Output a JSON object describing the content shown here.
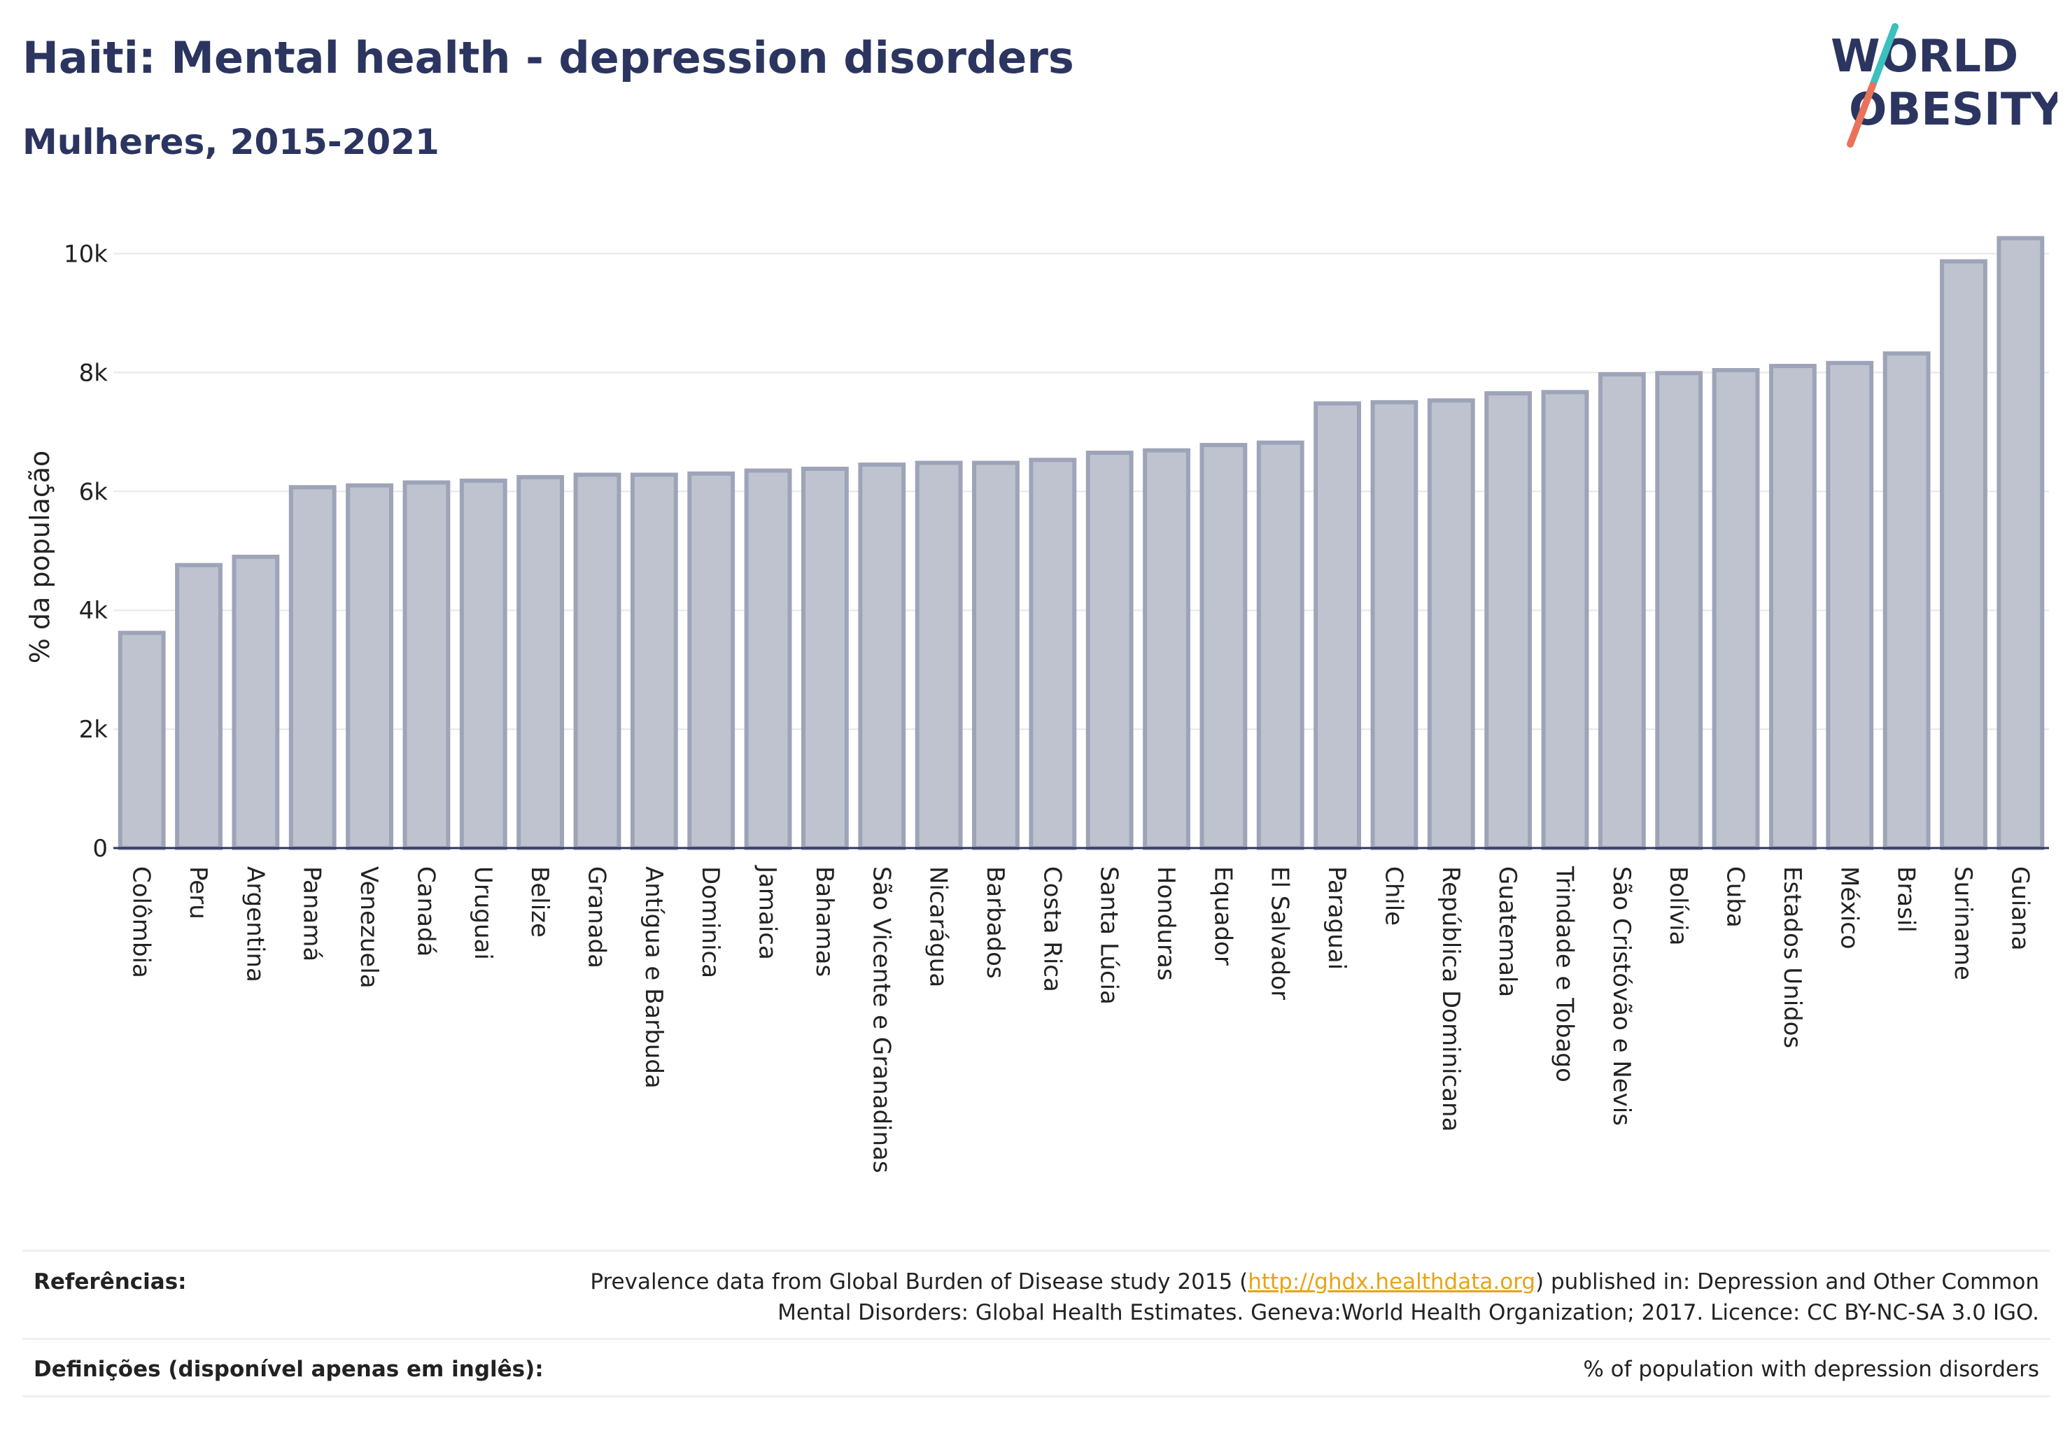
{
  "header": {
    "title": "Haiti: Mental health - depression disorders",
    "subtitle": "Mulheres, 2015-2021"
  },
  "logo": {
    "line1": "WORLD",
    "line2": "OBESITY",
    "accent_colors": [
      "#3bbfbf",
      "#e8735a"
    ]
  },
  "colors": {
    "bar_fill": "#bfc3cf",
    "bar_stroke": "#9ea4b8",
    "axis": "#2b3560",
    "grid": "#e5e7ee"
  },
  "chart_data": {
    "type": "bar",
    "ylabel": "% da população",
    "ylim": [
      0,
      10500
    ],
    "yticks": [
      0,
      2000,
      4000,
      6000,
      8000,
      10000
    ],
    "ytick_labels": [
      "0",
      "2k",
      "4k",
      "6k",
      "8k",
      "10k"
    ],
    "grid": true,
    "categories": [
      "Colômbia",
      "Peru",
      "Argentina",
      "Panamá",
      "Venezuela",
      "Canadá",
      "Uruguai",
      "Belize",
      "Granada",
      "Antígua e Barbuda",
      "Dominica",
      "Jamaica",
      "Bahamas",
      "São Vicente e Granadinas",
      "Nicarágua",
      "Barbados",
      "Costa Rica",
      "Santa Lúcia",
      "Honduras",
      "Equador",
      "El Salvador",
      "Paraguai",
      "Chile",
      "República Dominicana",
      "Guatemala",
      "Trindade e Tobago",
      "São Cristóvão e Nevis",
      "Bolívia",
      "Cuba",
      "Estados Unidos",
      "México",
      "Brasil",
      "Suriname",
      "Guiana"
    ],
    "values": [
      3620,
      4760,
      4900,
      6070,
      6100,
      6150,
      6180,
      6240,
      6280,
      6280,
      6300,
      6350,
      6380,
      6450,
      6480,
      6480,
      6530,
      6650,
      6690,
      6780,
      6820,
      7480,
      7500,
      7530,
      7650,
      7670,
      7970,
      7990,
      8040,
      8110,
      8160,
      8320,
      9870,
      10260
    ]
  },
  "footer": {
    "references_label": "Referências:",
    "references_pre": "Prevalence data from Global Burden of Disease study 2015 (",
    "references_link": "http://ghdx.healthdata.org",
    "references_post": ") published in: Depression and Other Common",
    "references_line2": "Mental Disorders: Global Health Estimates. Geneva:World Health Organization; 2017. Licence: CC BY-NC-SA 3.0 IGO.",
    "definitions_label": "Definições (disponível apenas em inglês):",
    "definitions_value": "% of population with depression disorders"
  }
}
